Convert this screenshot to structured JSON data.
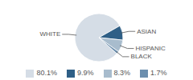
{
  "chart_data": {
    "type": "pie",
    "categories": [
      "WHITE",
      "ASIAN",
      "HISPANIC",
      "BLACK"
    ],
    "values": [
      80.1,
      9.9,
      8.3,
      1.7
    ],
    "value_labels": [
      "80.1%",
      "9.9%",
      "8.3%",
      "1.7%"
    ],
    "colors": [
      "#d5dde6",
      "#2f5f86",
      "#a8bccd",
      "#6c8fae"
    ],
    "legend": "bottom",
    "data_labels": false
  }
}
